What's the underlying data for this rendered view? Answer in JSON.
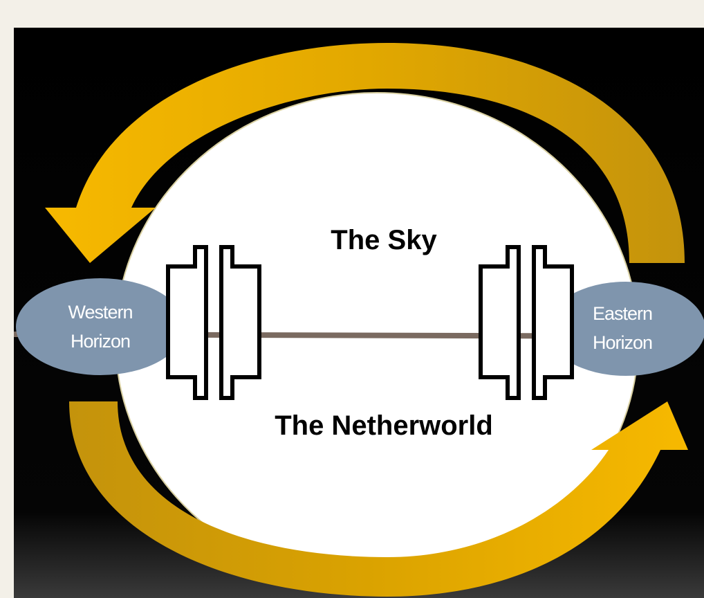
{
  "diagram": {
    "regions": [
      {
        "label": "The Sky"
      },
      {
        "label": "The Netherworld"
      }
    ],
    "horizons": [
      {
        "lines": [
          "Western",
          "Horizon"
        ]
      },
      {
        "lines": [
          "Eastern",
          "Horizon"
        ]
      }
    ]
  }
}
